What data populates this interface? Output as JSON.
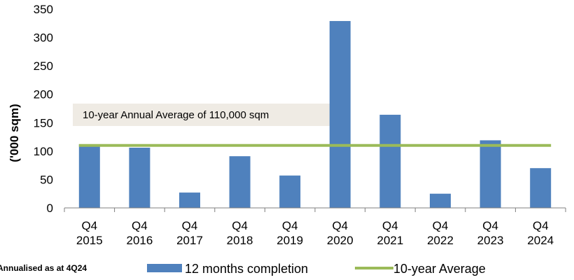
{
  "chart_data": {
    "type": "bar",
    "categories": [
      [
        "Q4",
        "2015"
      ],
      [
        "Q4",
        "2016"
      ],
      [
        "Q4",
        "2017"
      ],
      [
        "Q4",
        "2018"
      ],
      [
        "Q4",
        "2019"
      ],
      [
        "Q4",
        "2020"
      ],
      [
        "Q4",
        "2021"
      ],
      [
        "Q4",
        "2022"
      ],
      [
        "Q4",
        "2023"
      ],
      [
        "Q4",
        "2024"
      ]
    ],
    "series": [
      {
        "name": "12 months completion",
        "type": "bar",
        "color": "#4f81bd",
        "values": [
          112,
          106,
          27,
          91,
          57,
          329,
          164,
          25,
          119,
          70
        ]
      },
      {
        "name": "10-year Average",
        "type": "line",
        "color": "#9bbb59",
        "values": [
          110,
          110,
          110,
          110,
          110,
          110,
          110,
          110,
          110,
          110
        ]
      }
    ],
    "ylabel": "('000 sqm)",
    "ylim": [
      0,
      350
    ],
    "yticks": [
      0,
      50,
      100,
      150,
      200,
      250,
      300,
      350
    ],
    "grid": false,
    "legend_position": "bottom",
    "annotation": "10-year Annual Average of 110,000 sqm",
    "footnote": "Annualised as at 4Q24"
  }
}
